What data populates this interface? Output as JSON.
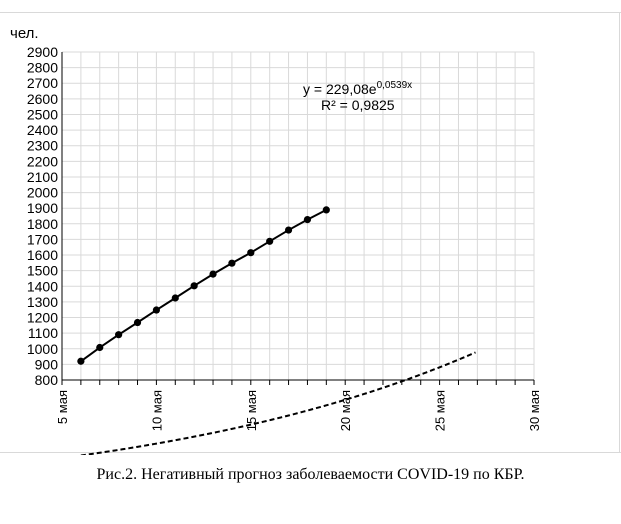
{
  "chart_data": {
    "type": "scatter",
    "ylabel": "чел.",
    "xlabel": "",
    "title": "",
    "xlim": [
      5,
      30
    ],
    "ylim": [
      800,
      2900
    ],
    "x_ticks": [
      {
        "value": 5,
        "label": "5 мая"
      },
      {
        "value": 10,
        "label": "10 мая"
      },
      {
        "value": 15,
        "label": "15 мая"
      },
      {
        "value": 20,
        "label": "20 мая"
      },
      {
        "value": 25,
        "label": "25 мая"
      },
      {
        "value": 30,
        "label": "30 мая"
      }
    ],
    "y_ticks": [
      "2900",
      "2800",
      "2700",
      "2600",
      "2500",
      "2400",
      "2300",
      "2200",
      "2100",
      "2000",
      "1900",
      "1800",
      "1700",
      "1600",
      "1500",
      "1400",
      "1300",
      "1200",
      "1100",
      "1000",
      "900",
      "800"
    ],
    "grid": true,
    "series": [
      {
        "x": [
          6,
          7,
          8,
          9,
          10,
          11,
          12,
          13,
          14,
          15,
          16,
          17,
          18,
          19
        ],
        "y": [
          920,
          1008,
          1090,
          1168,
          1248,
          1325,
          1403,
          1478,
          1548,
          1615,
          1688,
          1760,
          1827,
          1889
        ]
      }
    ],
    "trendline": {
      "type": "exponential",
      "a": 229.08,
      "b": 0.0539,
      "equation_prefix": "y = 229,08e",
      "equation_exponent": "0,0539x",
      "r2_label": "R² = 0,9825"
    }
  },
  "caption": "Рис.2. Негативный прогноз заболеваемости COVID-19 по КБР."
}
